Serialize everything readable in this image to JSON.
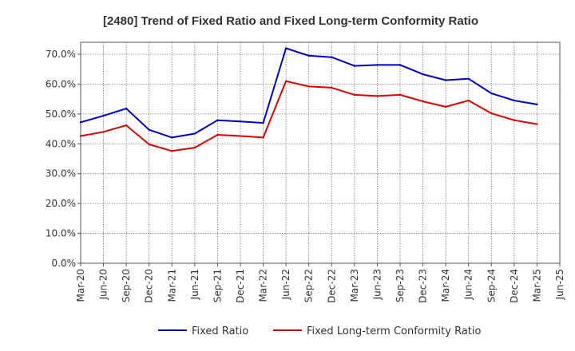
{
  "chart_data": {
    "type": "line",
    "title": "[2480]  Trend of Fixed Ratio and Fixed Long-term Conformity Ratio",
    "xlabel": "",
    "ylabel": "",
    "ylim": [
      0,
      0.74
    ],
    "y_ticks": [
      "0.0%",
      "10.0%",
      "20.0%",
      "30.0%",
      "40.0%",
      "50.0%",
      "60.0%",
      "70.0%"
    ],
    "y_tick_values": [
      0,
      0.1,
      0.2,
      0.3,
      0.4,
      0.5,
      0.6,
      0.7
    ],
    "categories": [
      "Mar-20",
      "Jun-20",
      "Sep-20",
      "Dec-20",
      "Mar-21",
      "Jun-21",
      "Sep-21",
      "Dec-21",
      "Mar-22",
      "Jun-22",
      "Sep-22",
      "Dec-22",
      "Mar-23",
      "Jun-23",
      "Sep-23",
      "Dec-23",
      "Mar-24",
      "Jun-24",
      "Sep-24",
      "Dec-24",
      "Mar-25",
      "Jun-25"
    ],
    "grid": true,
    "legend_position": "bottom",
    "series": [
      {
        "name": "Fixed Ratio",
        "color": "#0000cc",
        "values": [
          0.472,
          0.494,
          0.518,
          0.447,
          0.421,
          0.434,
          0.479,
          0.475,
          0.47,
          0.72,
          0.695,
          0.69,
          0.661,
          0.664,
          0.664,
          0.633,
          0.613,
          0.618,
          0.569,
          0.545,
          0.532,
          null
        ]
      },
      {
        "name": "Fixed Long-term Conformity Ratio",
        "color": "#e00000",
        "values": [
          0.426,
          0.44,
          0.462,
          0.398,
          0.376,
          0.387,
          0.43,
          0.426,
          0.421,
          0.61,
          0.592,
          0.588,
          0.564,
          0.56,
          0.564,
          0.542,
          0.524,
          0.545,
          0.502,
          0.479,
          0.466,
          null
        ]
      }
    ]
  }
}
